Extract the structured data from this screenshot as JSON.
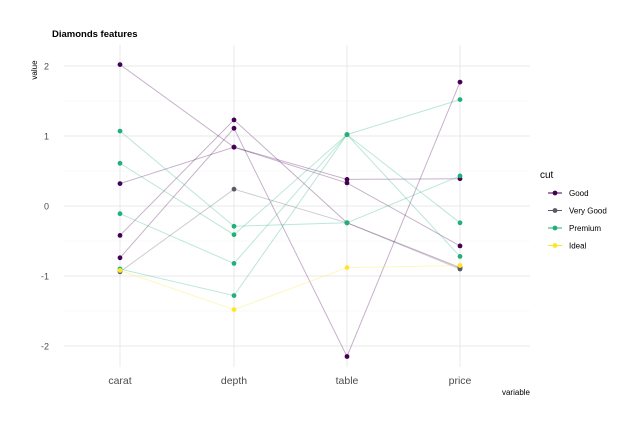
{
  "chart_data": {
    "type": "line",
    "title": "Diamonds features",
    "xlabel": "variable",
    "ylabel": "value",
    "categories": [
      "carat",
      "depth",
      "table",
      "price"
    ],
    "ylim": [
      -2.3,
      2.3
    ],
    "yticks": [
      -2,
      -1,
      0,
      1,
      2
    ],
    "grid": true,
    "legend": {
      "title": "cut",
      "position": "right",
      "entries": [
        {
          "name": "Good",
          "color": "#440154"
        },
        {
          "name": "Very Good",
          "color": "#5a5a66"
        },
        {
          "name": "Premium",
          "color": "#21b07a"
        },
        {
          "name": "Ideal",
          "color": "#fde725"
        }
      ]
    },
    "series": [
      {
        "group": "Good",
        "values": [
          2.02,
          0.84,
          0.33,
          -0.57
        ]
      },
      {
        "group": "Good",
        "values": [
          -0.42,
          1.23,
          -0.24,
          -0.88
        ]
      },
      {
        "group": "Good",
        "values": [
          0.32,
          0.84,
          0.38,
          0.39
        ]
      },
      {
        "group": "Good",
        "values": [
          -0.74,
          1.11,
          -2.15,
          1.77
        ]
      },
      {
        "group": "Very Good",
        "values": [
          -0.94,
          0.24,
          -0.24,
          -0.9
        ]
      },
      {
        "group": "Premium",
        "values": [
          1.07,
          -0.29,
          -0.24,
          0.43
        ]
      },
      {
        "group": "Premium",
        "values": [
          0.61,
          -0.41,
          1.02,
          -0.24
        ]
      },
      {
        "group": "Premium",
        "values": [
          -0.11,
          -0.82,
          1.02,
          1.52
        ]
      },
      {
        "group": "Premium",
        "values": [
          -0.9,
          -1.28,
          1.02,
          -0.72
        ]
      },
      {
        "group": "Ideal",
        "values": [
          -0.92,
          -1.48,
          -0.88,
          -0.85
        ]
      }
    ]
  }
}
